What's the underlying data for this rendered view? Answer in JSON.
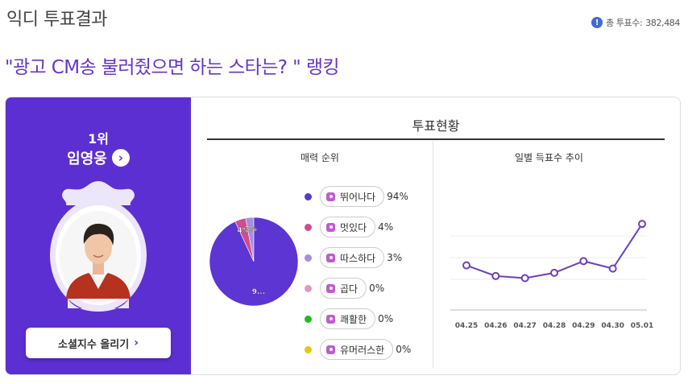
{
  "header": {
    "title": "익디 투표결과",
    "total_votes_label": "총 투표수:",
    "total_votes_value": "382,484",
    "info_icon": "info-circle-icon"
  },
  "ranking_title": "\"광고 CM송 불러줬으면 하는 스타는? \" 랭킹",
  "winner": {
    "rank": "1위",
    "name": "임영웅",
    "cheer_button": "소셜지수 올리기",
    "arrow_icon": "chevron-right-icon"
  },
  "vote_status": {
    "title": "투표현황",
    "charm_title": "매력 순위",
    "trend_title": "일별 득표수 추이"
  },
  "colors": {
    "brand_purple": "#5c2fd2",
    "accent_title": "#6535c9"
  },
  "chart_data": [
    {
      "type": "pie",
      "title": "매력 순위",
      "slices": [
        {
          "label": "뛰어나다",
          "value": 94,
          "display": "94%",
          "color": "#5c35d2",
          "slice_label": "9..."
        },
        {
          "label": "멋있다",
          "value": 4,
          "display": "4%",
          "color": "#d04b8f",
          "slice_label": "4%"
        },
        {
          "label": "따스하다",
          "value": 3,
          "display": "3%",
          "color": "#a58fe0",
          "slice_label": "3%"
        },
        {
          "label": "곱다",
          "value": 0,
          "display": "0%",
          "color": "#e398c2",
          "slice_label": ""
        },
        {
          "label": "쾌활한",
          "value": 0,
          "display": "0%",
          "color": "#22bb22",
          "slice_label": ""
        },
        {
          "label": "유머러스한",
          "value": 0,
          "display": "0%",
          "color": "#f2c30f",
          "slice_label": ""
        }
      ]
    },
    {
      "type": "line",
      "title": "일별 득표수 추이",
      "categories": [
        "04.25",
        "04.26",
        "04.27",
        "04.28",
        "04.29",
        "04.30",
        "05.01"
      ],
      "values": [
        48,
        38,
        36,
        41,
        52,
        45,
        87
      ],
      "ylim": [
        0,
        100
      ],
      "grid": true,
      "color": "#6b3fc2"
    }
  ]
}
